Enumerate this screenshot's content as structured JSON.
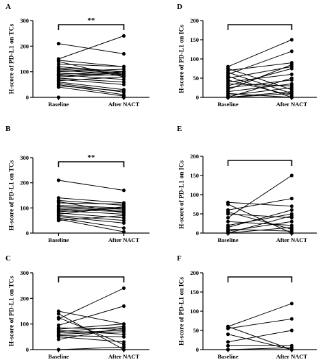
{
  "chart_data": [
    {
      "panel": "A",
      "type": "line",
      "ylabel": "H-score of PD-L1 on TCs",
      "categories": [
        "Baseline",
        "After NACT"
      ],
      "ylim": [
        0,
        300
      ],
      "yticks": [
        0,
        100,
        200,
        300
      ],
      "significance": "**",
      "pairs": [
        [
          210,
          170
        ],
        [
          150,
          240
        ],
        [
          145,
          120
        ],
        [
          140,
          80
        ],
        [
          130,
          120
        ],
        [
          120,
          100
        ],
        [
          115,
          100
        ],
        [
          110,
          95
        ],
        [
          105,
          90
        ],
        [
          100,
          110
        ],
        [
          95,
          85
        ],
        [
          90,
          100
        ],
        [
          88,
          70
        ],
        [
          85,
          95
        ],
        [
          80,
          90
        ],
        [
          75,
          60
        ],
        [
          70,
          50
        ],
        [
          65,
          80
        ],
        [
          60,
          30
        ],
        [
          55,
          20
        ],
        [
          50,
          10
        ],
        [
          45,
          25
        ],
        [
          40,
          5
        ],
        [
          0,
          0
        ]
      ]
    },
    {
      "panel": "B",
      "type": "line",
      "ylabel": "H-score of PD-L1 on TCs",
      "categories": [
        "Baseline",
        "After NACT"
      ],
      "ylim": [
        0,
        300
      ],
      "yticks": [
        0,
        100,
        200,
        300
      ],
      "significance": "**",
      "pairs": [
        [
          210,
          170
        ],
        [
          140,
          120
        ],
        [
          130,
          110
        ],
        [
          125,
          80
        ],
        [
          120,
          115
        ],
        [
          110,
          100
        ],
        [
          105,
          95
        ],
        [
          100,
          90
        ],
        [
          95,
          85
        ],
        [
          90,
          75
        ],
        [
          85,
          100
        ],
        [
          80,
          60
        ],
        [
          75,
          105
        ],
        [
          70,
          50
        ],
        [
          65,
          40
        ],
        [
          60,
          20
        ],
        [
          55,
          5
        ],
        [
          50,
          70
        ]
      ]
    },
    {
      "panel": "C",
      "type": "line",
      "ylabel": "H-score of PD-L1 on TCs",
      "categories": [
        "Baseline",
        "After NACT"
      ],
      "ylim": [
        0,
        300
      ],
      "yticks": [
        0,
        100,
        200,
        300
      ],
      "significance": "",
      "pairs": [
        [
          150,
          100
        ],
        [
          140,
          0
        ],
        [
          125,
          20
        ],
        [
          120,
          240
        ],
        [
          95,
          170
        ],
        [
          85,
          80
        ],
        [
          80,
          100
        ],
        [
          75,
          60
        ],
        [
          70,
          90
        ],
        [
          65,
          75
        ],
        [
          60,
          70
        ],
        [
          55,
          50
        ],
        [
          50,
          30
        ],
        [
          40,
          85
        ],
        [
          0,
          10
        ]
      ]
    },
    {
      "panel": "D",
      "type": "line",
      "ylabel": "H-score of PD-L1 on ICs",
      "categories": [
        "Baseline",
        "After NACT"
      ],
      "ylim": [
        0,
        200
      ],
      "yticks": [
        0,
        50,
        100,
        150,
        200
      ],
      "significance": "",
      "pairs": [
        [
          80,
          150
        ],
        [
          75,
          20
        ],
        [
          70,
          90
        ],
        [
          65,
          10
        ],
        [
          60,
          120
        ],
        [
          55,
          0
        ],
        [
          50,
          80
        ],
        [
          45,
          5
        ],
        [
          40,
          60
        ],
        [
          35,
          30
        ],
        [
          30,
          75
        ],
        [
          25,
          45
        ],
        [
          20,
          85
        ],
        [
          15,
          35
        ],
        [
          10,
          0
        ],
        [
          5,
          25
        ],
        [
          0,
          50
        ],
        [
          0,
          10
        ],
        [
          0,
          0
        ],
        [
          0,
          15
        ]
      ]
    },
    {
      "panel": "E",
      "type": "line",
      "ylabel": "H-score of PD-L1 on ICs",
      "categories": [
        "Baseline",
        "After NACT"
      ],
      "ylim": [
        0,
        200
      ],
      "yticks": [
        0,
        50,
        100,
        150,
        200
      ],
      "significance": "",
      "pairs": [
        [
          80,
          70
        ],
        [
          75,
          0
        ],
        [
          60,
          90
        ],
        [
          55,
          10
        ],
        [
          50,
          40
        ],
        [
          40,
          150
        ],
        [
          30,
          20
        ],
        [
          20,
          50
        ],
        [
          15,
          60
        ],
        [
          10,
          5
        ],
        [
          5,
          30
        ],
        [
          0,
          15
        ],
        [
          0,
          0
        ],
        [
          0,
          45
        ]
      ]
    },
    {
      "panel": "F",
      "type": "line",
      "ylabel": "H-score of PD-L1  on ICs",
      "categories": [
        "Baseline",
        "After NACT"
      ],
      "ylim": [
        0,
        200
      ],
      "yticks": [
        0,
        50,
        100,
        150,
        200
      ],
      "significance": "",
      "pairs": [
        [
          60,
          120
        ],
        [
          60,
          0
        ],
        [
          55,
          80
        ],
        [
          40,
          0
        ],
        [
          20,
          50
        ],
        [
          10,
          10
        ],
        [
          0,
          0
        ],
        [
          0,
          5
        ]
      ]
    }
  ]
}
